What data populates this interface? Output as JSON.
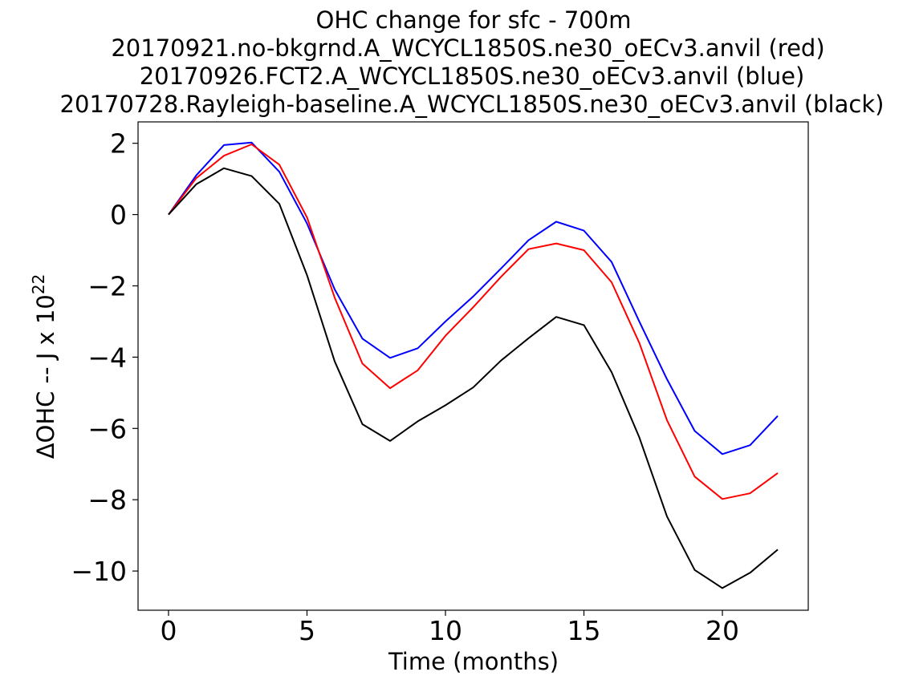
{
  "chart_data": {
    "type": "line",
    "title_lines": [
      "OHC change for sfc - 700m",
      "20170921.no-bkgrnd.A_WCYCL1850S.ne30_oECv3.anvil (red)",
      "20170926.FCT2.A_WCYCL1850S.ne30_oECv3.anvil (blue)",
      "20170728.Rayleigh-baseline.A_WCYCL1850S.ne30_oECv3.anvil (black)"
    ],
    "xlabel": "Time (months)",
    "ylabel_main": "ΔOHC -- J x 10",
    "ylabel_exponent": "22",
    "xlim": [
      -1.1,
      23.1
    ],
    "ylim": [
      -11.1,
      2.6
    ],
    "xticks": [
      0,
      5,
      10,
      15,
      20
    ],
    "yticks": [
      2,
      0,
      -2,
      -4,
      -6,
      -8,
      -10
    ],
    "ytick_labels": [
      "2",
      "0",
      "−2",
      "−4",
      "−6",
      "−8",
      "−10"
    ],
    "x": [
      0,
      1,
      2,
      3,
      4,
      5,
      6,
      7,
      8,
      9,
      10,
      11,
      12,
      13,
      14,
      15,
      16,
      17,
      18,
      19,
      20,
      21,
      22
    ],
    "series": [
      {
        "name": "20170926.FCT2.A_WCYCL1850S.ne30_oECv3.anvil (blue)",
        "color": "#0000ff",
        "values": [
          0,
          1.1,
          1.95,
          2.02,
          1.2,
          -0.25,
          -2.1,
          -3.48,
          -4.02,
          -3.75,
          -3.0,
          -2.3,
          -1.52,
          -0.72,
          -0.2,
          -0.45,
          -1.33,
          -3.0,
          -4.62,
          -6.07,
          -6.72,
          -6.47,
          -5.65
        ]
      },
      {
        "name": "20170921.no-bkgrnd.A_WCYCL1850S.ne30_oECv3.anvil (red)",
        "color": "#ff0000",
        "values": [
          0,
          1.02,
          1.65,
          1.97,
          1.4,
          -0.08,
          -2.33,
          -4.18,
          -4.87,
          -4.37,
          -3.4,
          -2.6,
          -1.75,
          -0.97,
          -0.81,
          -1.0,
          -1.9,
          -3.6,
          -5.77,
          -7.35,
          -7.98,
          -7.82,
          -7.25
        ]
      },
      {
        "name": "20170728.Rayleigh-baseline.A_WCYCL1850S.ne30_oECv3.anvil (black)",
        "color": "#000000",
        "values": [
          0,
          0.85,
          1.3,
          1.08,
          0.3,
          -1.7,
          -4.12,
          -5.88,
          -6.35,
          -5.8,
          -5.35,
          -4.85,
          -4.1,
          -3.47,
          -2.87,
          -3.1,
          -4.42,
          -6.25,
          -8.47,
          -9.97,
          -10.48,
          -10.05,
          -9.4
        ]
      }
    ]
  }
}
